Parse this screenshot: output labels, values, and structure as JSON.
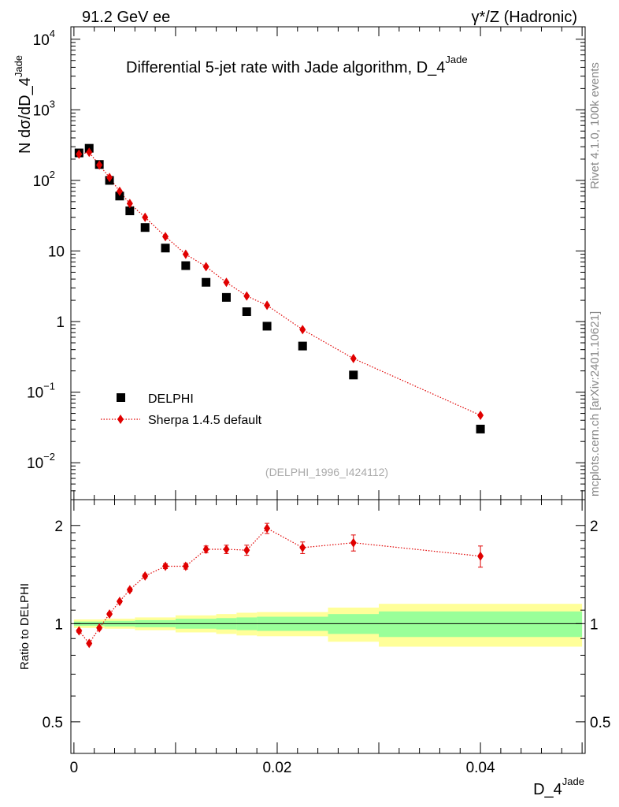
{
  "header": {
    "left": "91.2 GeV ee",
    "right_main": "γ*/Z (Hadronic)"
  },
  "side_labels": {
    "rivet": "Rivet 4.1.0,  100k events",
    "mcplots": "mcplots.cern.ch [arXiv:2401.10621]"
  },
  "colors": {
    "data": "#000000",
    "mc": "#e00000",
    "band_inner": "#99ff99",
    "band_outer": "#ffff99"
  },
  "chart_data": [
    {
      "type": "scatter",
      "panel": "main",
      "title": "Differential 5-jet rate with Jade algorithm, D_4",
      "title_sup": "Jade",
      "ylabel": "N  dσ/dD_4",
      "ylabel_sup": "Jade",
      "yscale": "log",
      "ylim": [
        0.003,
        15000
      ],
      "xlim": [
        -0.0003,
        0.0503
      ],
      "ytick_labels": [
        {
          "v": 0.01,
          "base": "10",
          "exp": "−2"
        },
        {
          "v": 0.1,
          "base": "10",
          "exp": "−1"
        },
        {
          "v": 1,
          "base": "1",
          "exp": ""
        },
        {
          "v": 10,
          "base": "10",
          "exp": ""
        },
        {
          "v": 100,
          "base": "10",
          "exp": "2"
        },
        {
          "v": 1000,
          "base": "10",
          "exp": "3"
        },
        {
          "v": 10000,
          "base": "10",
          "exp": "4"
        }
      ],
      "legend": [
        "DELPHI",
        "Sherpa 1.4.5 default"
      ],
      "legend_position": "bottom-left",
      "annotation": "(DELPHI_1996_I424112)",
      "series": [
        {
          "name": "DELPHI",
          "marker": "square",
          "x": [
            0.0005,
            0.0015,
            0.0025,
            0.0035,
            0.0045,
            0.0055,
            0.007,
            0.009,
            0.011,
            0.013,
            0.015,
            0.017,
            0.019,
            0.0225,
            0.0275,
            0.04
          ],
          "y": [
            245,
            285,
            168,
            100,
            60,
            37,
            21.5,
            11,
            6.2,
            3.6,
            2.2,
            1.38,
            0.86,
            0.45,
            0.175,
            0.03
          ]
        },
        {
          "name": "Sherpa 1.4.5 default",
          "marker": "diamond",
          "line": "dotted",
          "x": [
            0.0005,
            0.0015,
            0.0025,
            0.0035,
            0.0045,
            0.0055,
            0.007,
            0.009,
            0.011,
            0.013,
            0.015,
            0.017,
            0.019,
            0.0225,
            0.0275,
            0.04
          ],
          "y": [
            235,
            250,
            165,
            110,
            70,
            47,
            30,
            16,
            9,
            6,
            3.6,
            2.3,
            1.7,
            0.77,
            0.3,
            0.047
          ]
        }
      ]
    },
    {
      "type": "line",
      "panel": "ratio",
      "ylabel": "Ratio to DELPHI",
      "xlabel": "D_4",
      "xlabel_sup": "Jade",
      "yscale": "log",
      "ylim": [
        0.4,
        2.4
      ],
      "xlim": [
        -0.0003,
        0.0503
      ],
      "x_tick_labels": [
        {
          "v": 0,
          "label": "0"
        },
        {
          "v": 0.02,
          "label": "0.02"
        },
        {
          "v": 0.04,
          "label": "0.04"
        }
      ],
      "y_tick_labels": [
        {
          "v": 0.5,
          "label": "0.5"
        },
        {
          "v": 1,
          "label": "1"
        },
        {
          "v": 2,
          "label": "2"
        }
      ],
      "bands": [
        {
          "x0": 0.0,
          "x1": 0.003,
          "inner": [
            0.985,
            1.015
          ],
          "outer": [
            0.97,
            1.03
          ]
        },
        {
          "x0": 0.003,
          "x1": 0.006,
          "inner": [
            0.98,
            1.02
          ],
          "outer": [
            0.965,
            1.035
          ]
        },
        {
          "x0": 0.006,
          "x1": 0.01,
          "inner": [
            0.975,
            1.025
          ],
          "outer": [
            0.955,
            1.045
          ]
        },
        {
          "x0": 0.01,
          "x1": 0.014,
          "inner": [
            0.965,
            1.035
          ],
          "outer": [
            0.94,
            1.06
          ]
        },
        {
          "x0": 0.014,
          "x1": 0.016,
          "inner": [
            0.96,
            1.04
          ],
          "outer": [
            0.93,
            1.07
          ]
        },
        {
          "x0": 0.016,
          "x1": 0.018,
          "inner": [
            0.955,
            1.045
          ],
          "outer": [
            0.92,
            1.08
          ]
        },
        {
          "x0": 0.018,
          "x1": 0.025,
          "inner": [
            0.95,
            1.05
          ],
          "outer": [
            0.915,
            1.085
          ]
        },
        {
          "x0": 0.025,
          "x1": 0.03,
          "inner": [
            0.93,
            1.07
          ],
          "outer": [
            0.88,
            1.12
          ]
        },
        {
          "x0": 0.03,
          "x1": 0.05,
          "inner": [
            0.91,
            1.09
          ],
          "outer": [
            0.85,
            1.15
          ]
        }
      ],
      "series": [
        {
          "name": "Sherpa 1.4.5 default / DELPHI",
          "x": [
            0.0005,
            0.0015,
            0.0025,
            0.0035,
            0.0045,
            0.0055,
            0.007,
            0.009,
            0.011,
            0.013,
            0.015,
            0.017,
            0.019,
            0.0225,
            0.0275,
            0.04
          ],
          "y": [
            0.95,
            0.87,
            0.97,
            1.07,
            1.17,
            1.27,
            1.4,
            1.5,
            1.5,
            1.69,
            1.69,
            1.68,
            1.96,
            1.71,
            1.77,
            1.61
          ],
          "yerr": [
            0.01,
            0.01,
            0.01,
            0.01,
            0.01,
            0.015,
            0.02,
            0.025,
            0.03,
            0.04,
            0.05,
            0.06,
            0.07,
            0.07,
            0.1,
            0.12
          ]
        }
      ]
    }
  ]
}
